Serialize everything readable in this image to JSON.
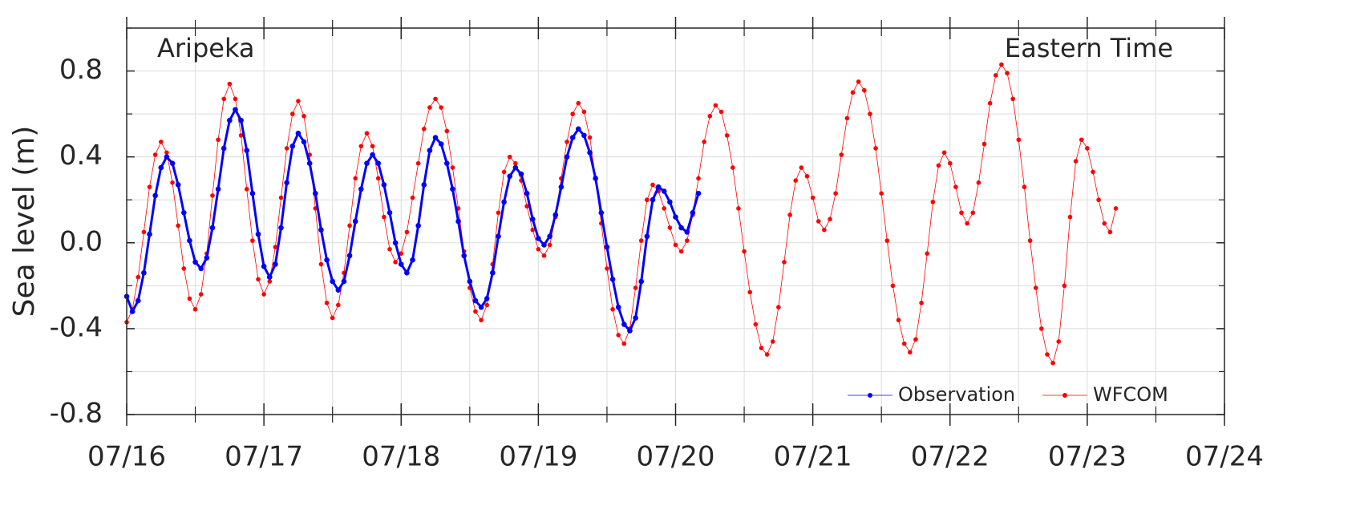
{
  "chart_data": {
    "type": "line",
    "ylabel": "Sea level (m)",
    "annotations": [
      "Aripeka",
      "Eastern Time"
    ],
    "xlim": [
      0,
      192
    ],
    "xticks": [
      {
        "value": 0,
        "label": "07/16"
      },
      {
        "value": 24,
        "label": "07/17"
      },
      {
        "value": 48,
        "label": "07/18"
      },
      {
        "value": 72,
        "label": "07/19"
      },
      {
        "value": 96,
        "label": "07/20"
      },
      {
        "value": 120,
        "label": "07/21"
      },
      {
        "value": 144,
        "label": "07/22"
      },
      {
        "value": 168,
        "label": "07/23"
      },
      {
        "value": 192,
        "label": "07/24"
      }
    ],
    "xgrid": [
      12,
      36,
      60,
      84,
      108,
      132,
      156,
      180
    ],
    "ylim": [
      -0.8,
      1.0
    ],
    "yticks": [
      -0.8,
      -0.4,
      {
        "value": 0,
        "label": "0.0"
      },
      0.4,
      0.8
    ],
    "ygrid": [
      -0.6,
      -0.2,
      0.2,
      0.6,
      1.0
    ],
    "grid": true,
    "legend": "lower right",
    "series": [
      {
        "name": "Observation",
        "color": "#0000ff",
        "x": [
          0,
          1,
          2,
          3,
          4,
          5,
          6,
          7,
          8,
          9,
          10,
          11,
          12,
          13,
          14,
          15,
          16,
          17,
          18,
          19,
          20,
          21,
          22,
          23,
          24,
          25,
          26,
          27,
          28,
          29,
          30,
          31,
          32,
          33,
          34,
          35,
          36,
          37,
          38,
          39,
          40,
          41,
          42,
          43,
          44,
          45,
          46,
          47,
          48,
          49,
          50,
          51,
          52,
          53,
          54,
          55,
          56,
          57,
          58,
          59,
          60,
          61,
          62,
          63,
          64,
          65,
          66,
          67,
          68,
          69,
          70,
          71,
          72,
          73,
          74,
          75,
          76,
          77,
          78,
          79,
          80,
          81,
          82,
          83,
          84,
          85,
          86,
          87,
          88,
          89,
          90,
          91,
          92,
          93,
          94,
          95,
          96,
          97,
          98,
          99,
          100
        ],
        "values": [
          -0.25,
          -0.32,
          -0.27,
          -0.14,
          0.04,
          0.22,
          0.35,
          0.4,
          0.37,
          0.27,
          0.14,
          0.01,
          -0.09,
          -0.12,
          -0.07,
          0.07,
          0.25,
          0.44,
          0.57,
          0.62,
          0.57,
          0.43,
          0.23,
          0.04,
          -0.11,
          -0.16,
          -0.1,
          0.07,
          0.28,
          0.45,
          0.51,
          0.47,
          0.37,
          0.23,
          0.06,
          -0.08,
          -0.18,
          -0.22,
          -0.18,
          -0.06,
          0.1,
          0.25,
          0.37,
          0.41,
          0.37,
          0.27,
          0.14,
          0.0,
          -0.1,
          -0.14,
          -0.08,
          0.08,
          0.27,
          0.43,
          0.49,
          0.46,
          0.37,
          0.25,
          0.1,
          -0.06,
          -0.18,
          -0.27,
          -0.3,
          -0.26,
          -0.14,
          0.03,
          0.19,
          0.31,
          0.35,
          0.32,
          0.23,
          0.11,
          0.02,
          -0.01,
          0.03,
          0.13,
          0.26,
          0.4,
          0.49,
          0.53,
          0.5,
          0.42,
          0.3,
          0.14,
          -0.02,
          -0.17,
          -0.3,
          -0.38,
          -0.41,
          -0.35,
          -0.18,
          0.03,
          0.2,
          0.26,
          0.24,
          0.19,
          0.12,
          0.07,
          0.05,
          0.14,
          0.23
        ]
      },
      {
        "name": "WFCOM",
        "color": "#ff0000",
        "x": [
          0,
          1,
          2,
          3,
          4,
          5,
          6,
          7,
          8,
          9,
          10,
          11,
          12,
          13,
          14,
          15,
          16,
          17,
          18,
          19,
          20,
          21,
          22,
          23,
          24,
          25,
          26,
          27,
          28,
          29,
          30,
          31,
          32,
          33,
          34,
          35,
          36,
          37,
          38,
          39,
          40,
          41,
          42,
          43,
          44,
          45,
          46,
          47,
          48,
          49,
          50,
          51,
          52,
          53,
          54,
          55,
          56,
          57,
          58,
          59,
          60,
          61,
          62,
          63,
          64,
          65,
          66,
          67,
          68,
          69,
          70,
          71,
          72,
          73,
          74,
          75,
          76,
          77,
          78,
          79,
          80,
          81,
          82,
          83,
          84,
          85,
          86,
          87,
          88,
          89,
          90,
          91,
          92,
          93,
          94,
          95,
          96,
          97,
          98,
          99,
          100,
          101,
          102,
          103,
          104,
          105,
          106,
          107,
          108,
          109,
          110,
          111,
          112,
          113,
          114,
          115,
          116,
          117,
          118,
          119,
          120,
          121,
          122,
          123,
          124,
          125,
          126,
          127,
          128,
          129,
          130,
          131,
          132,
          133,
          134,
          135,
          136,
          137,
          138,
          139,
          140,
          141,
          142,
          143,
          144,
          145,
          146,
          147,
          148,
          149,
          150,
          151,
          152,
          153,
          154,
          155,
          156,
          157,
          158,
          159,
          160,
          161,
          162,
          163,
          164,
          165,
          166,
          167,
          168,
          169,
          170,
          171,
          172,
          173
        ],
        "values": [
          -0.37,
          -0.31,
          -0.16,
          0.05,
          0.26,
          0.41,
          0.47,
          0.42,
          0.28,
          0.08,
          -0.12,
          -0.26,
          -0.31,
          -0.24,
          -0.05,
          0.22,
          0.48,
          0.67,
          0.74,
          0.67,
          0.5,
          0.25,
          0.01,
          -0.17,
          -0.24,
          -0.18,
          -0.02,
          0.21,
          0.44,
          0.6,
          0.66,
          0.59,
          0.41,
          0.16,
          -0.1,
          -0.28,
          -0.35,
          -0.29,
          -0.14,
          0.08,
          0.3,
          0.45,
          0.51,
          0.45,
          0.3,
          0.12,
          -0.03,
          -0.09,
          -0.05,
          0.05,
          0.21,
          0.37,
          0.53,
          0.63,
          0.67,
          0.63,
          0.52,
          0.35,
          0.16,
          -0.04,
          -0.21,
          -0.32,
          -0.36,
          -0.29,
          -0.1,
          0.14,
          0.33,
          0.4,
          0.37,
          0.29,
          0.17,
          0.06,
          -0.03,
          -0.06,
          -0.01,
          0.12,
          0.3,
          0.47,
          0.6,
          0.65,
          0.61,
          0.49,
          0.3,
          0.09,
          -0.12,
          -0.31,
          -0.43,
          -0.47,
          -0.4,
          -0.21,
          0.01,
          0.2,
          0.27,
          0.24,
          0.16,
          0.07,
          -0.01,
          -0.04,
          0.01,
          0.13,
          0.3,
          0.47,
          0.59,
          0.64,
          0.61,
          0.5,
          0.35,
          0.16,
          -0.04,
          -0.23,
          -0.38,
          -0.49,
          -0.52,
          -0.46,
          -0.3,
          -0.09,
          0.13,
          0.29,
          0.35,
          0.31,
          0.21,
          0.1,
          0.06,
          0.11,
          0.23,
          0.41,
          0.58,
          0.7,
          0.75,
          0.71,
          0.6,
          0.44,
          0.23,
          0.01,
          -0.2,
          -0.36,
          -0.47,
          -0.51,
          -0.45,
          -0.28,
          -0.05,
          0.19,
          0.36,
          0.42,
          0.37,
          0.26,
          0.14,
          0.09,
          0.14,
          0.28,
          0.46,
          0.65,
          0.78,
          0.83,
          0.79,
          0.67,
          0.48,
          0.26,
          0.01,
          -0.21,
          -0.4,
          -0.52,
          -0.56,
          -0.46,
          -0.2,
          0.12,
          0.38,
          0.48,
          0.44,
          0.33,
          0.2,
          0.09,
          0.05,
          0.16
        ]
      }
    ]
  }
}
